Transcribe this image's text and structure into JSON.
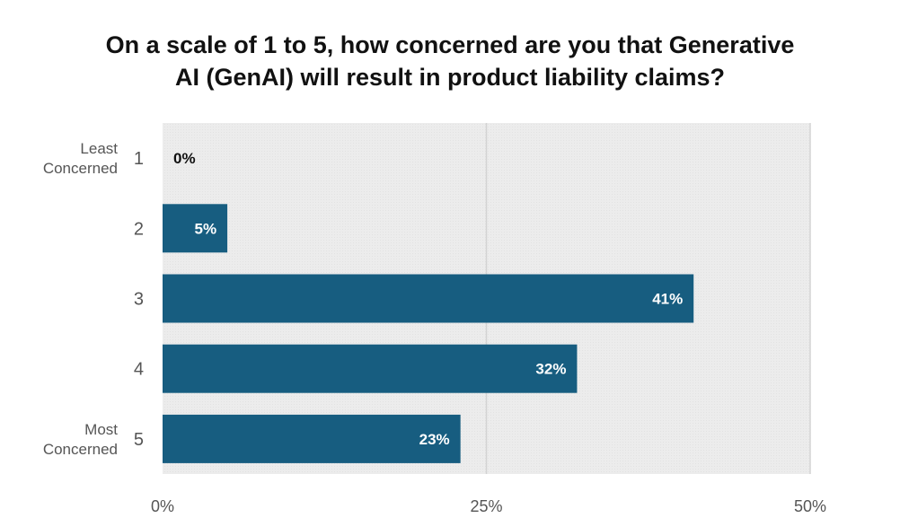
{
  "chart_data": {
    "type": "bar",
    "orientation": "horizontal",
    "title_lines": [
      "On a scale of 1 to 5, how concerned are you that Generative",
      "AI (GenAI) will result in product liability claims?"
    ],
    "categories": [
      "1",
      "2",
      "3",
      "4",
      "5"
    ],
    "values": [
      0,
      5,
      41,
      32,
      23
    ],
    "data_labels": [
      "0%",
      "5%",
      "41%",
      "32%",
      "23%"
    ],
    "end_labels": {
      "least": [
        "Least",
        "Concerned"
      ],
      "most": [
        "Most",
        "Concerned"
      ]
    },
    "x_ticks": [
      0,
      25,
      50
    ],
    "x_tick_labels": [
      "0%",
      "25%",
      "50%"
    ],
    "xlim": [
      0,
      50
    ],
    "xlabel": "",
    "ylabel": "",
    "grid": true,
    "legend": "none"
  },
  "colors": {
    "bar": "#175d80",
    "plot_background": "#ebebeb",
    "gridline": "#d3d3d3",
    "label_inside": "#ffffff",
    "label_outside": "#111111"
  }
}
